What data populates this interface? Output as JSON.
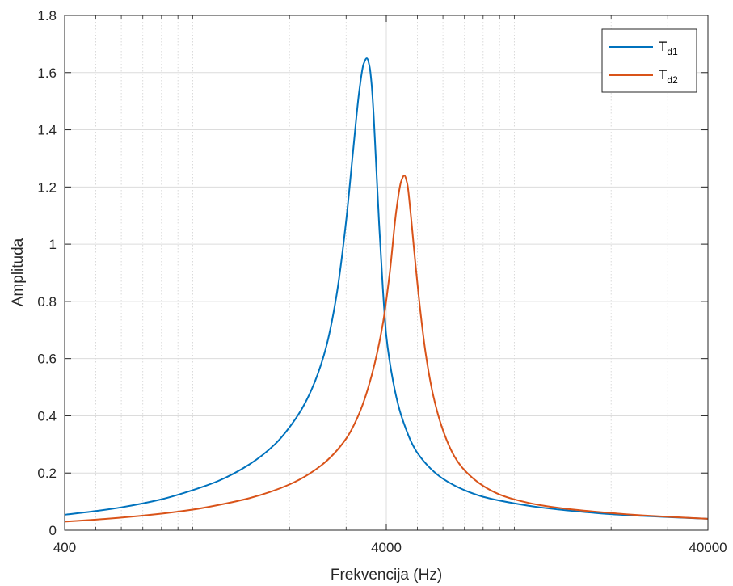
{
  "chart_data": {
    "type": "line",
    "xscale": "log",
    "xlabel": "Frekvencija (Hz)",
    "ylabel": "Amplituda",
    "xlim": [
      400,
      40000
    ],
    "ylim": [
      0,
      1.8
    ],
    "xticks": [
      400,
      4000,
      40000
    ],
    "xtick_labels": [
      "400",
      "4000",
      "40000"
    ],
    "yticks": [
      0,
      0.2,
      0.4,
      0.6,
      0.8,
      1,
      1.2,
      1.4,
      1.6,
      1.8
    ],
    "ytick_labels": [
      "0",
      "0.2",
      "0.4",
      "0.6",
      "0.8",
      "1",
      "1.2",
      "1.4",
      "1.6",
      "1.8"
    ],
    "grid": true,
    "minor_grid_x": true,
    "legend_location": "top-right",
    "series": [
      {
        "name": "T_d1",
        "label_main": "T",
        "label_sub": "d1",
        "color": "#0072BD",
        "x": [
          400,
          500,
          600,
          800,
          1000,
          1200,
          1500,
          1800,
          2000,
          2200,
          2400,
          2600,
          2800,
          3000,
          3150,
          3300,
          3400,
          3480,
          3550,
          3600,
          3650,
          3700,
          3800,
          3900,
          4000,
          4200,
          4400,
          4600,
          4800,
          5000,
          5500,
          6000,
          7000,
          8000,
          10000,
          12000,
          15000,
          20000,
          25000,
          30000,
          40000
        ],
        "y": [
          0.054,
          0.067,
          0.08,
          0.108,
          0.14,
          0.172,
          0.23,
          0.3,
          0.36,
          0.43,
          0.52,
          0.64,
          0.82,
          1.08,
          1.32,
          1.54,
          1.63,
          1.65,
          1.62,
          1.56,
          1.46,
          1.33,
          1.07,
          0.85,
          0.68,
          0.52,
          0.42,
          0.355,
          0.305,
          0.27,
          0.215,
          0.18,
          0.14,
          0.117,
          0.094,
          0.08,
          0.068,
          0.056,
          0.05,
          0.046,
          0.04
        ]
      },
      {
        "name": "T_d2",
        "label_main": "T",
        "label_sub": "d2",
        "color": "#D95319",
        "x": [
          400,
          500,
          600,
          800,
          1000,
          1200,
          1500,
          2000,
          2500,
          3000,
          3300,
          3600,
          3900,
          4100,
          4300,
          4450,
          4550,
          4650,
          4750,
          4900,
          5100,
          5300,
          5600,
          6000,
          6500,
          7000,
          8000,
          9000,
          10000,
          12000,
          15000,
          20000,
          25000,
          30000,
          40000
        ],
        "y": [
          0.03,
          0.037,
          0.044,
          0.058,
          0.072,
          0.088,
          0.112,
          0.16,
          0.225,
          0.32,
          0.41,
          0.54,
          0.72,
          0.9,
          1.12,
          1.22,
          1.24,
          1.21,
          1.12,
          0.96,
          0.77,
          0.62,
          0.47,
          0.35,
          0.26,
          0.21,
          0.155,
          0.125,
          0.108,
          0.088,
          0.073,
          0.06,
          0.052,
          0.047,
          0.04
        ]
      }
    ]
  }
}
